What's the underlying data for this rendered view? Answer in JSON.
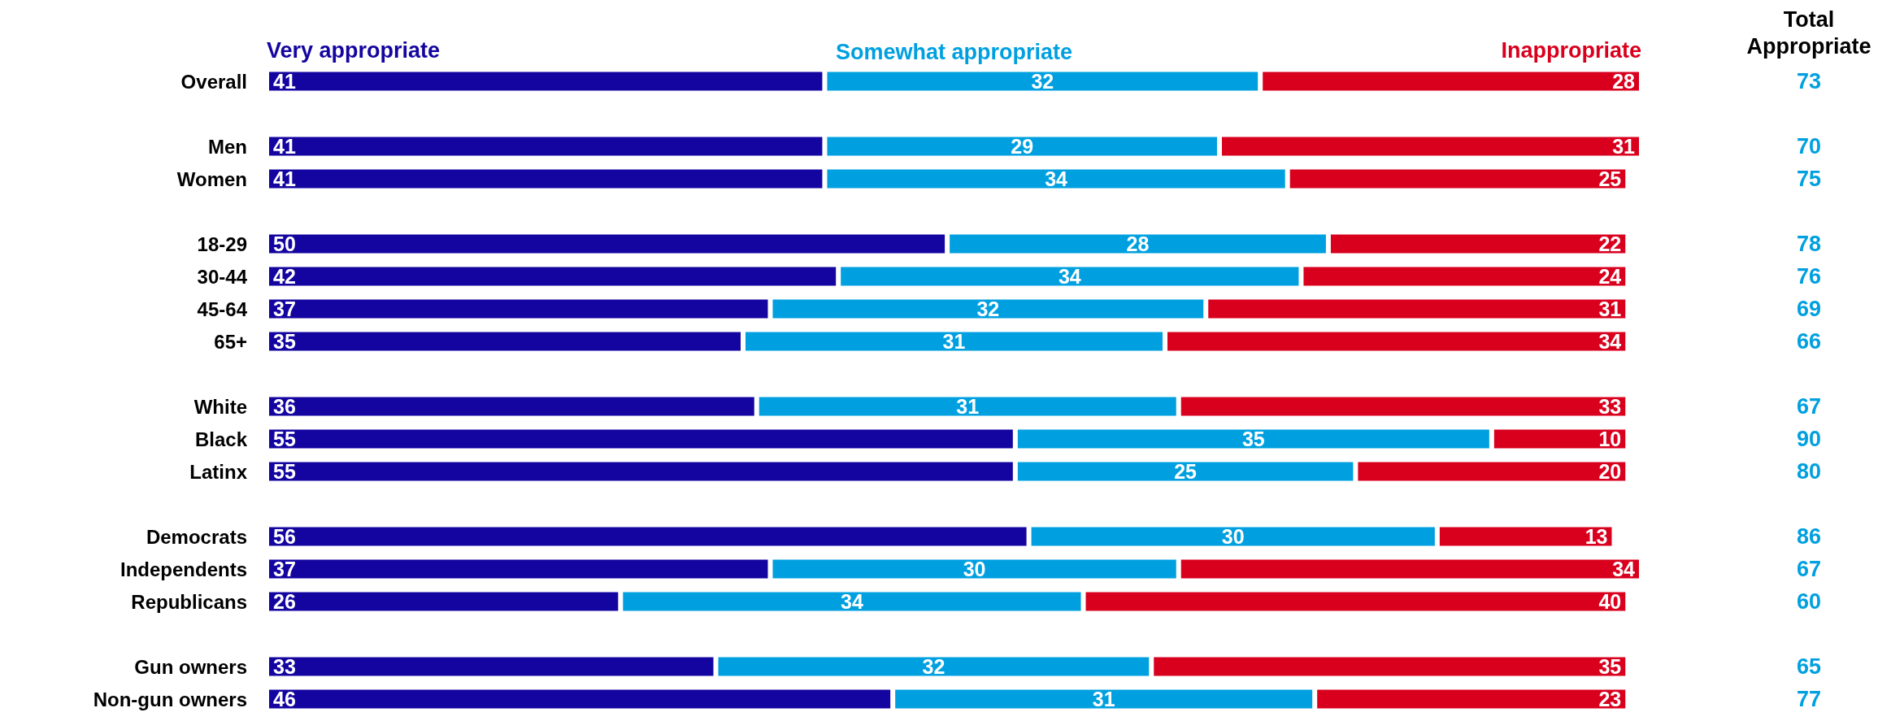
{
  "chart_data": {
    "type": "bar",
    "orientation": "horizontal",
    "stacked": true,
    "data_labels": true,
    "legend": "top",
    "xlim": [
      0,
      101
    ],
    "categories": [
      "Overall",
      null,
      "Men",
      "Women",
      null,
      "18-29",
      "30-44",
      "45-64",
      "65+",
      null,
      "White",
      "Black",
      "Latinx",
      null,
      "Democrats",
      "Independents",
      "Republicans",
      null,
      "Gun owners",
      "Non-gun owners"
    ],
    "series": [
      {
        "name": "Very appropriate",
        "color": "#1405a0",
        "values": [
          41,
          null,
          41,
          41,
          null,
          50,
          42,
          37,
          35,
          null,
          36,
          55,
          55,
          null,
          56,
          37,
          26,
          null,
          33,
          46
        ]
      },
      {
        "name": "Somewhat appropriate",
        "color": "#00a0e0",
        "values": [
          32,
          null,
          29,
          34,
          null,
          28,
          34,
          32,
          31,
          null,
          31,
          35,
          25,
          null,
          30,
          30,
          34,
          null,
          32,
          31
        ]
      },
      {
        "name": "Inappropriate",
        "color": "#d9001e",
        "values": [
          28,
          null,
          31,
          25,
          null,
          22,
          24,
          31,
          34,
          null,
          33,
          10,
          20,
          null,
          13,
          34,
          40,
          null,
          35,
          23
        ]
      }
    ],
    "annotations": [
      "Total\nAppropriate",
      "73",
      "70",
      "75",
      "78",
      "76",
      "69",
      "66",
      "67",
      "90",
      "80",
      "86",
      "67",
      "60",
      "65",
      "77"
    ]
  }
}
